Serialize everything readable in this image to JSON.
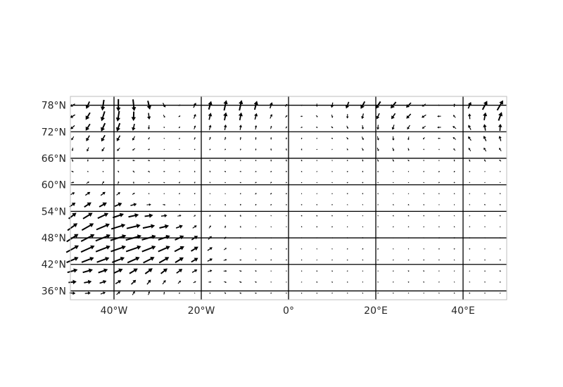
{
  "chart_data": {
    "type": "quiver",
    "title": "",
    "xlabel": "",
    "ylabel": "",
    "projection": "plate-carree",
    "xlim": [
      -50,
      50
    ],
    "ylim": [
      34,
      80
    ],
    "grid": true,
    "legend": "none",
    "colors": {
      "arrows": "#000000",
      "grid": "#000000",
      "frame": "#bdbdbd",
      "text": "#262626"
    },
    "lon_ticks": [
      {
        "value": -40,
        "label": "40°W"
      },
      {
        "value": -20,
        "label": "20°W"
      },
      {
        "value": 0,
        "label": "0°"
      },
      {
        "value": 20,
        "label": "20°E"
      },
      {
        "value": 40,
        "label": "40°E"
      }
    ],
    "lat_ticks": [
      {
        "value": 36,
        "label": "36°N"
      },
      {
        "value": 42,
        "label": "42°N"
      },
      {
        "value": 48,
        "label": "48°N"
      },
      {
        "value": 54,
        "label": "54°N"
      },
      {
        "value": 60,
        "label": "60°N"
      },
      {
        "value": 66,
        "label": "66°N"
      },
      {
        "value": 72,
        "label": "72°N"
      },
      {
        "value": 78,
        "label": "78°N"
      }
    ],
    "arrow_grid": {
      "lon_start": -49.5,
      "lon_step": 3.5,
      "lon_count": 29,
      "lat_start": 35.5,
      "lat_step": 2.5,
      "lat_count": 18
    },
    "vector_field_note_units": "degrees per arrow"
  }
}
